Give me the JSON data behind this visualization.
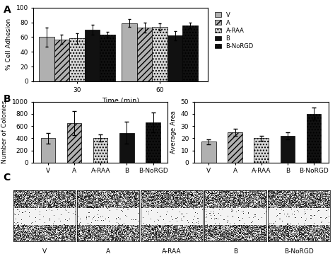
{
  "panel_A": {
    "ylabel": "% Cell Adhesion",
    "xlabel": "Time (min)",
    "groups": [
      "V",
      "A",
      "A-RAA",
      "B",
      "B-NoRGD"
    ],
    "values_30": [
      60,
      57,
      58,
      70,
      63
    ],
    "errors_30": [
      13,
      6,
      7,
      7,
      4
    ],
    "values_60": [
      79,
      73,
      74,
      62,
      76
    ],
    "errors_60": [
      5,
      7,
      5,
      6,
      4
    ],
    "ylim": [
      0,
      100
    ],
    "yticks": [
      0,
      20,
      40,
      60,
      80,
      100
    ]
  },
  "panel_B_left": {
    "ylabel": "Number of Colonies",
    "categories": [
      "V",
      "A",
      "A-RAA",
      "B",
      "B-NoRGD"
    ],
    "values": [
      400,
      650,
      400,
      490,
      660
    ],
    "errors": [
      90,
      200,
      60,
      180,
      160
    ],
    "ylim": [
      0,
      1000
    ],
    "yticks": [
      0,
      200,
      400,
      600,
      800,
      1000
    ]
  },
  "panel_B_right": {
    "ylabel": "Average Area",
    "categories": [
      "V",
      "A",
      "A-RAA",
      "B",
      "B-NoRGD"
    ],
    "values": [
      17,
      25,
      20,
      22,
      40
    ],
    "errors": [
      2,
      3,
      2,
      3,
      5
    ],
    "ylim": [
      0,
      50
    ],
    "yticks": [
      0,
      10,
      20,
      30,
      40,
      50
    ]
  },
  "legend_labels": [
    "V",
    "A",
    "A-RAA",
    "B",
    "B-NoRGD"
  ],
  "bar_colors": [
    "#b0b0b0",
    "#b0b0b0",
    "#d8d8d8",
    "#111111",
    "#111111"
  ],
  "bar_hatches": [
    "",
    "////",
    "....",
    "",
    "...."
  ],
  "scratch_labels": [
    "V",
    "A",
    "A-RAA",
    "B",
    "B-NoRGD"
  ]
}
